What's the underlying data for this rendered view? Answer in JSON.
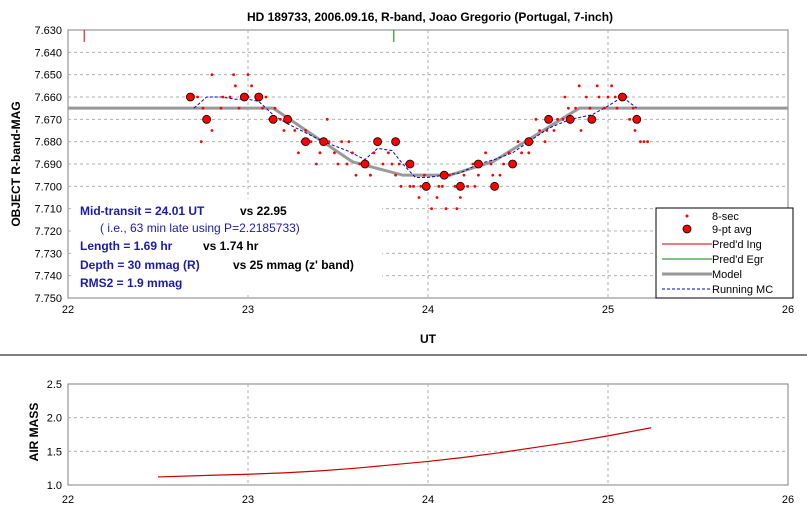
{
  "chart_data": [
    {
      "type": "scatter",
      "title": "HD 189733, 2006.09.16, R-band, Joao Gregorio (Portugal, 7-inch)",
      "xlabel": "UT",
      "ylabel": "OBJECT R-band-MAG",
      "xlim": [
        22,
        26
      ],
      "ylim": [
        7.63,
        7.75
      ],
      "y_inverted": true,
      "grid": true,
      "x_ticks": [
        "22",
        "23",
        "24",
        "25",
        "26"
      ],
      "y_ticks": [
        "7.630",
        "7.640",
        "7.650",
        "7.660",
        "7.670",
        "7.680",
        "7.690",
        "7.700",
        "7.710",
        "7.720",
        "7.730",
        "7.740",
        "7.750"
      ],
      "legend_position": "bottom-right",
      "legend": {
        "s8": "8-sec",
        "s9": "9-pt avg",
        "ing": "Pred'd Ing",
        "egr": "Pred'd Egr",
        "model": "Model",
        "mc": "Running MC"
      },
      "colors": {
        "s8": "#ff0000",
        "s9": "#ff0000",
        "ing": "#cc0000",
        "egr": "#008000",
        "model": "#999999",
        "mc": "#0000cc"
      },
      "annotations": {
        "mid_label": "Mid-transit = 24.01 UT",
        "mid_vs": "vs 22.95",
        "late": "( i.e., 63 min late using P=2.2185733)",
        "len_label": "Length = 1.69 hr",
        "len_vs": "vs 1.74 hr",
        "depth_label": "Depth = 30 mmag (R)",
        "depth_vs": "vs 25 mmag (z' band)",
        "rms": "RMS2 = 1.9 mmag"
      },
      "series": [
        {
          "name": "8-sec",
          "x": [
            22.72,
            22.75,
            22.78,
            22.8,
            22.85,
            22.9,
            22.93,
            22.95,
            22.97,
            23.0,
            23.02,
            23.05,
            23.08,
            23.1,
            22.74,
            22.8,
            22.86,
            22.92,
            23.0,
            23.06,
            23.12,
            23.15,
            23.18,
            23.2,
            23.23,
            23.26,
            23.28,
            23.3,
            23.32,
            23.35,
            23.38,
            23.4,
            23.42,
            23.45,
            23.48,
            23.5,
            23.52,
            23.55,
            23.58,
            23.6,
            23.62,
            23.65,
            23.68,
            23.7,
            23.72,
            23.75,
            23.78,
            23.8,
            23.82,
            23.85,
            23.88,
            23.9,
            23.92,
            23.95,
            23.98,
            24.0,
            24.02,
            24.05,
            24.08,
            24.1,
            24.12,
            24.15,
            24.18,
            24.2,
            24.22,
            24.25,
            24.28,
            24.3,
            24.32,
            24.35,
            24.38,
            24.4,
            24.42,
            24.45,
            24.48,
            24.5,
            24.52,
            24.55,
            24.58,
            24.6,
            24.62,
            24.65,
            24.68,
            24.7,
            24.72,
            24.75,
            24.78,
            24.8,
            24.82,
            24.85,
            24.88,
            24.9,
            24.92,
            24.95,
            24.98,
            25.0,
            25.02,
            25.05,
            25.08,
            25.1,
            25.12,
            25.15,
            25.18,
            25.2,
            24.76,
            24.84,
            24.94,
            25.04,
            25.14,
            25.22,
            23.44,
            23.56,
            23.68,
            23.84,
            23.96,
            24.06,
            24.16,
            24.26,
            24.36,
            24.46,
            24.56,
            24.66
          ],
          "y": [
            7.66,
            7.665,
            7.67,
            7.675,
            7.665,
            7.66,
            7.655,
            7.665,
            7.66,
            7.66,
            7.655,
            7.66,
            7.665,
            7.66,
            7.68,
            7.65,
            7.66,
            7.65,
            7.65,
            7.66,
            7.67,
            7.665,
            7.67,
            7.675,
            7.67,
            7.675,
            7.685,
            7.68,
            7.675,
            7.68,
            7.69,
            7.685,
            7.68,
            7.68,
            7.685,
            7.69,
            7.68,
            7.69,
            7.685,
            7.695,
            7.69,
            7.69,
            7.695,
            7.685,
            7.68,
            7.69,
            7.685,
            7.69,
            7.695,
            7.7,
            7.69,
            7.7,
            7.7,
            7.705,
            7.695,
            7.7,
            7.71,
            7.705,
            7.7,
            7.71,
            7.695,
            7.7,
            7.705,
            7.695,
            7.7,
            7.69,
            7.695,
            7.69,
            7.685,
            7.69,
            7.7,
            7.695,
            7.69,
            7.685,
            7.69,
            7.68,
            7.685,
            7.68,
            7.68,
            7.67,
            7.675,
            7.68,
            7.67,
            7.675,
            7.67,
            7.67,
            7.665,
            7.67,
            7.665,
            7.675,
            7.66,
            7.665,
            7.67,
            7.66,
            7.665,
            7.66,
            7.655,
            7.665,
            7.66,
            7.66,
            7.67,
            7.675,
            7.68,
            7.68,
            7.66,
            7.655,
            7.655,
            7.66,
            7.665,
            7.68,
            7.67,
            7.68,
            7.695,
            7.69,
            7.7,
            7.7,
            7.71,
            7.7,
            7.695,
            7.69,
            7.685,
            7.675
          ]
        },
        {
          "name": "9-pt avg",
          "x": [
            22.68,
            22.77,
            22.98,
            23.06,
            23.14,
            23.22,
            23.32,
            23.42,
            23.65,
            23.72,
            23.82,
            23.9,
            23.99,
            24.09,
            24.18,
            24.28,
            24.37,
            24.47,
            24.56,
            24.67,
            24.79,
            24.91,
            25.08,
            25.16
          ],
          "y": [
            7.66,
            7.67,
            7.66,
            7.66,
            7.67,
            7.67,
            7.68,
            7.68,
            7.69,
            7.68,
            7.68,
            7.69,
            7.7,
            7.695,
            7.7,
            7.69,
            7.7,
            7.69,
            7.68,
            7.67,
            7.67,
            7.67,
            7.66,
            7.67
          ]
        },
        {
          "name": "Model",
          "x": [
            22.0,
            23.14,
            23.58,
            23.86,
            24.12,
            24.36,
            24.84,
            26.0
          ],
          "y": [
            7.665,
            7.665,
            7.689,
            7.695,
            7.695,
            7.689,
            7.665,
            7.665
          ]
        },
        {
          "name": "Running MC",
          "x": [
            22.7,
            22.77,
            22.85,
            22.93,
            23.0,
            23.06,
            23.14,
            23.22,
            23.32,
            23.42,
            23.55,
            23.65,
            23.72,
            23.8,
            23.86,
            23.93,
            24.0,
            24.09,
            24.18,
            24.28,
            24.37,
            24.47,
            24.56,
            24.67,
            24.79,
            24.91,
            25.0,
            25.08,
            25.16
          ],
          "y": [
            7.665,
            7.66,
            7.66,
            7.661,
            7.661,
            7.662,
            7.668,
            7.672,
            7.676,
            7.68,
            7.684,
            7.688,
            7.683,
            7.684,
            7.69,
            7.696,
            7.696,
            7.695,
            7.694,
            7.69,
            7.688,
            7.685,
            7.68,
            7.674,
            7.67,
            7.668,
            7.664,
            7.66,
            7.665
          ]
        }
      ],
      "pred_ingress_x": 22.09,
      "pred_egress_x": 23.81
    },
    {
      "type": "line",
      "xlabel": "",
      "ylabel": "AIR MASS",
      "xlim": [
        22,
        26
      ],
      "ylim": [
        1.0,
        2.5
      ],
      "grid": true,
      "x_ticks": [
        "22",
        "23",
        "24",
        "25",
        "26"
      ],
      "y_ticks": [
        "1.0",
        "1.5",
        "2.0",
        "2.5"
      ],
      "series": [
        {
          "color": "#cc0000",
          "x": [
            22.5,
            22.8,
            23.0,
            23.2,
            23.4,
            23.6,
            23.8,
            24.0,
            24.2,
            24.4,
            24.6,
            24.8,
            25.0,
            25.2,
            25.24
          ],
          "values": [
            1.12,
            1.145,
            1.16,
            1.18,
            1.21,
            1.25,
            1.3,
            1.35,
            1.41,
            1.48,
            1.56,
            1.64,
            1.73,
            1.83,
            1.85
          ]
        }
      ]
    }
  ]
}
